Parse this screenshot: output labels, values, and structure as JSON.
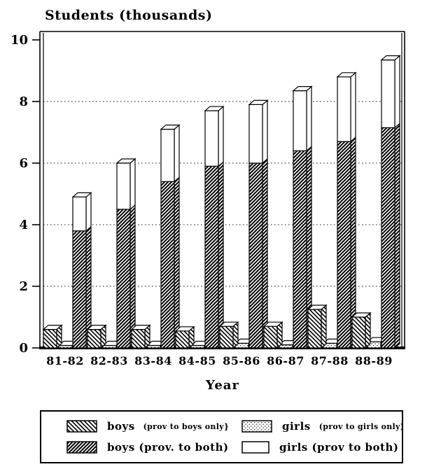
{
  "colors": {
    "ink": "#000000",
    "paper": "#ffffff"
  },
  "chart_data": {
    "type": "bar",
    "variant": "3d-stacked-grouped, monochrome hatched (scanned print)",
    "title": "Students (thousands)",
    "xlabel": "Year",
    "ylabel": "Students (thousands)",
    "ylim": [
      0,
      10
    ],
    "yticks": [
      0,
      2,
      4,
      6,
      8,
      10
    ],
    "grid": "dotted horizontal gridlines at 2, 4, 6, 8; full rectangular frame",
    "legend_position": "boxed legend below chart, 2 columns x 2 rows",
    "categories": [
      "81-82",
      "82-83",
      "83-84",
      "84-85",
      "85-86",
      "86-87",
      "87-88",
      "88-89"
    ],
    "series": [
      {
        "name": "boys (prov to boys only}",
        "pattern": "backslash-hatch",
        "bar": "left separate bar",
        "values": [
          0.6,
          0.6,
          0.6,
          0.55,
          0.7,
          0.7,
          1.25,
          1.0
        ]
      },
      {
        "name": "girls (prov to girls only)",
        "pattern": "dots",
        "bar": "middle separate (very flat) bar",
        "values": [
          0.08,
          0.08,
          0.08,
          0.08,
          0.15,
          0.1,
          0.15,
          0.2
        ]
      },
      {
        "name": "boys (prov. to both)",
        "pattern": "slash-hatch-dense",
        "bar": "right stacked bar, bottom segment",
        "values": [
          3.8,
          4.5,
          5.4,
          5.9,
          6.0,
          6.4,
          6.7,
          7.15
        ]
      },
      {
        "name": "girls (prov to both)",
        "pattern": "white",
        "bar": "right stacked bar, top segment",
        "values": [
          1.1,
          1.5,
          1.7,
          1.8,
          1.9,
          1.95,
          2.1,
          2.2
        ]
      }
    ]
  },
  "legend": {
    "items": [
      {
        "label": "boys",
        "detail": "(prov to boys only}",
        "pattern": "backslash-hatch"
      },
      {
        "label": "girls",
        "detail": "(prov to girls only)",
        "pattern": "dots"
      },
      {
        "label": "boys (prov. to both)",
        "detail": "",
        "pattern": "slash-hatch-dense"
      },
      {
        "label": "girls (prov to both)",
        "detail": "",
        "pattern": "white"
      }
    ]
  }
}
